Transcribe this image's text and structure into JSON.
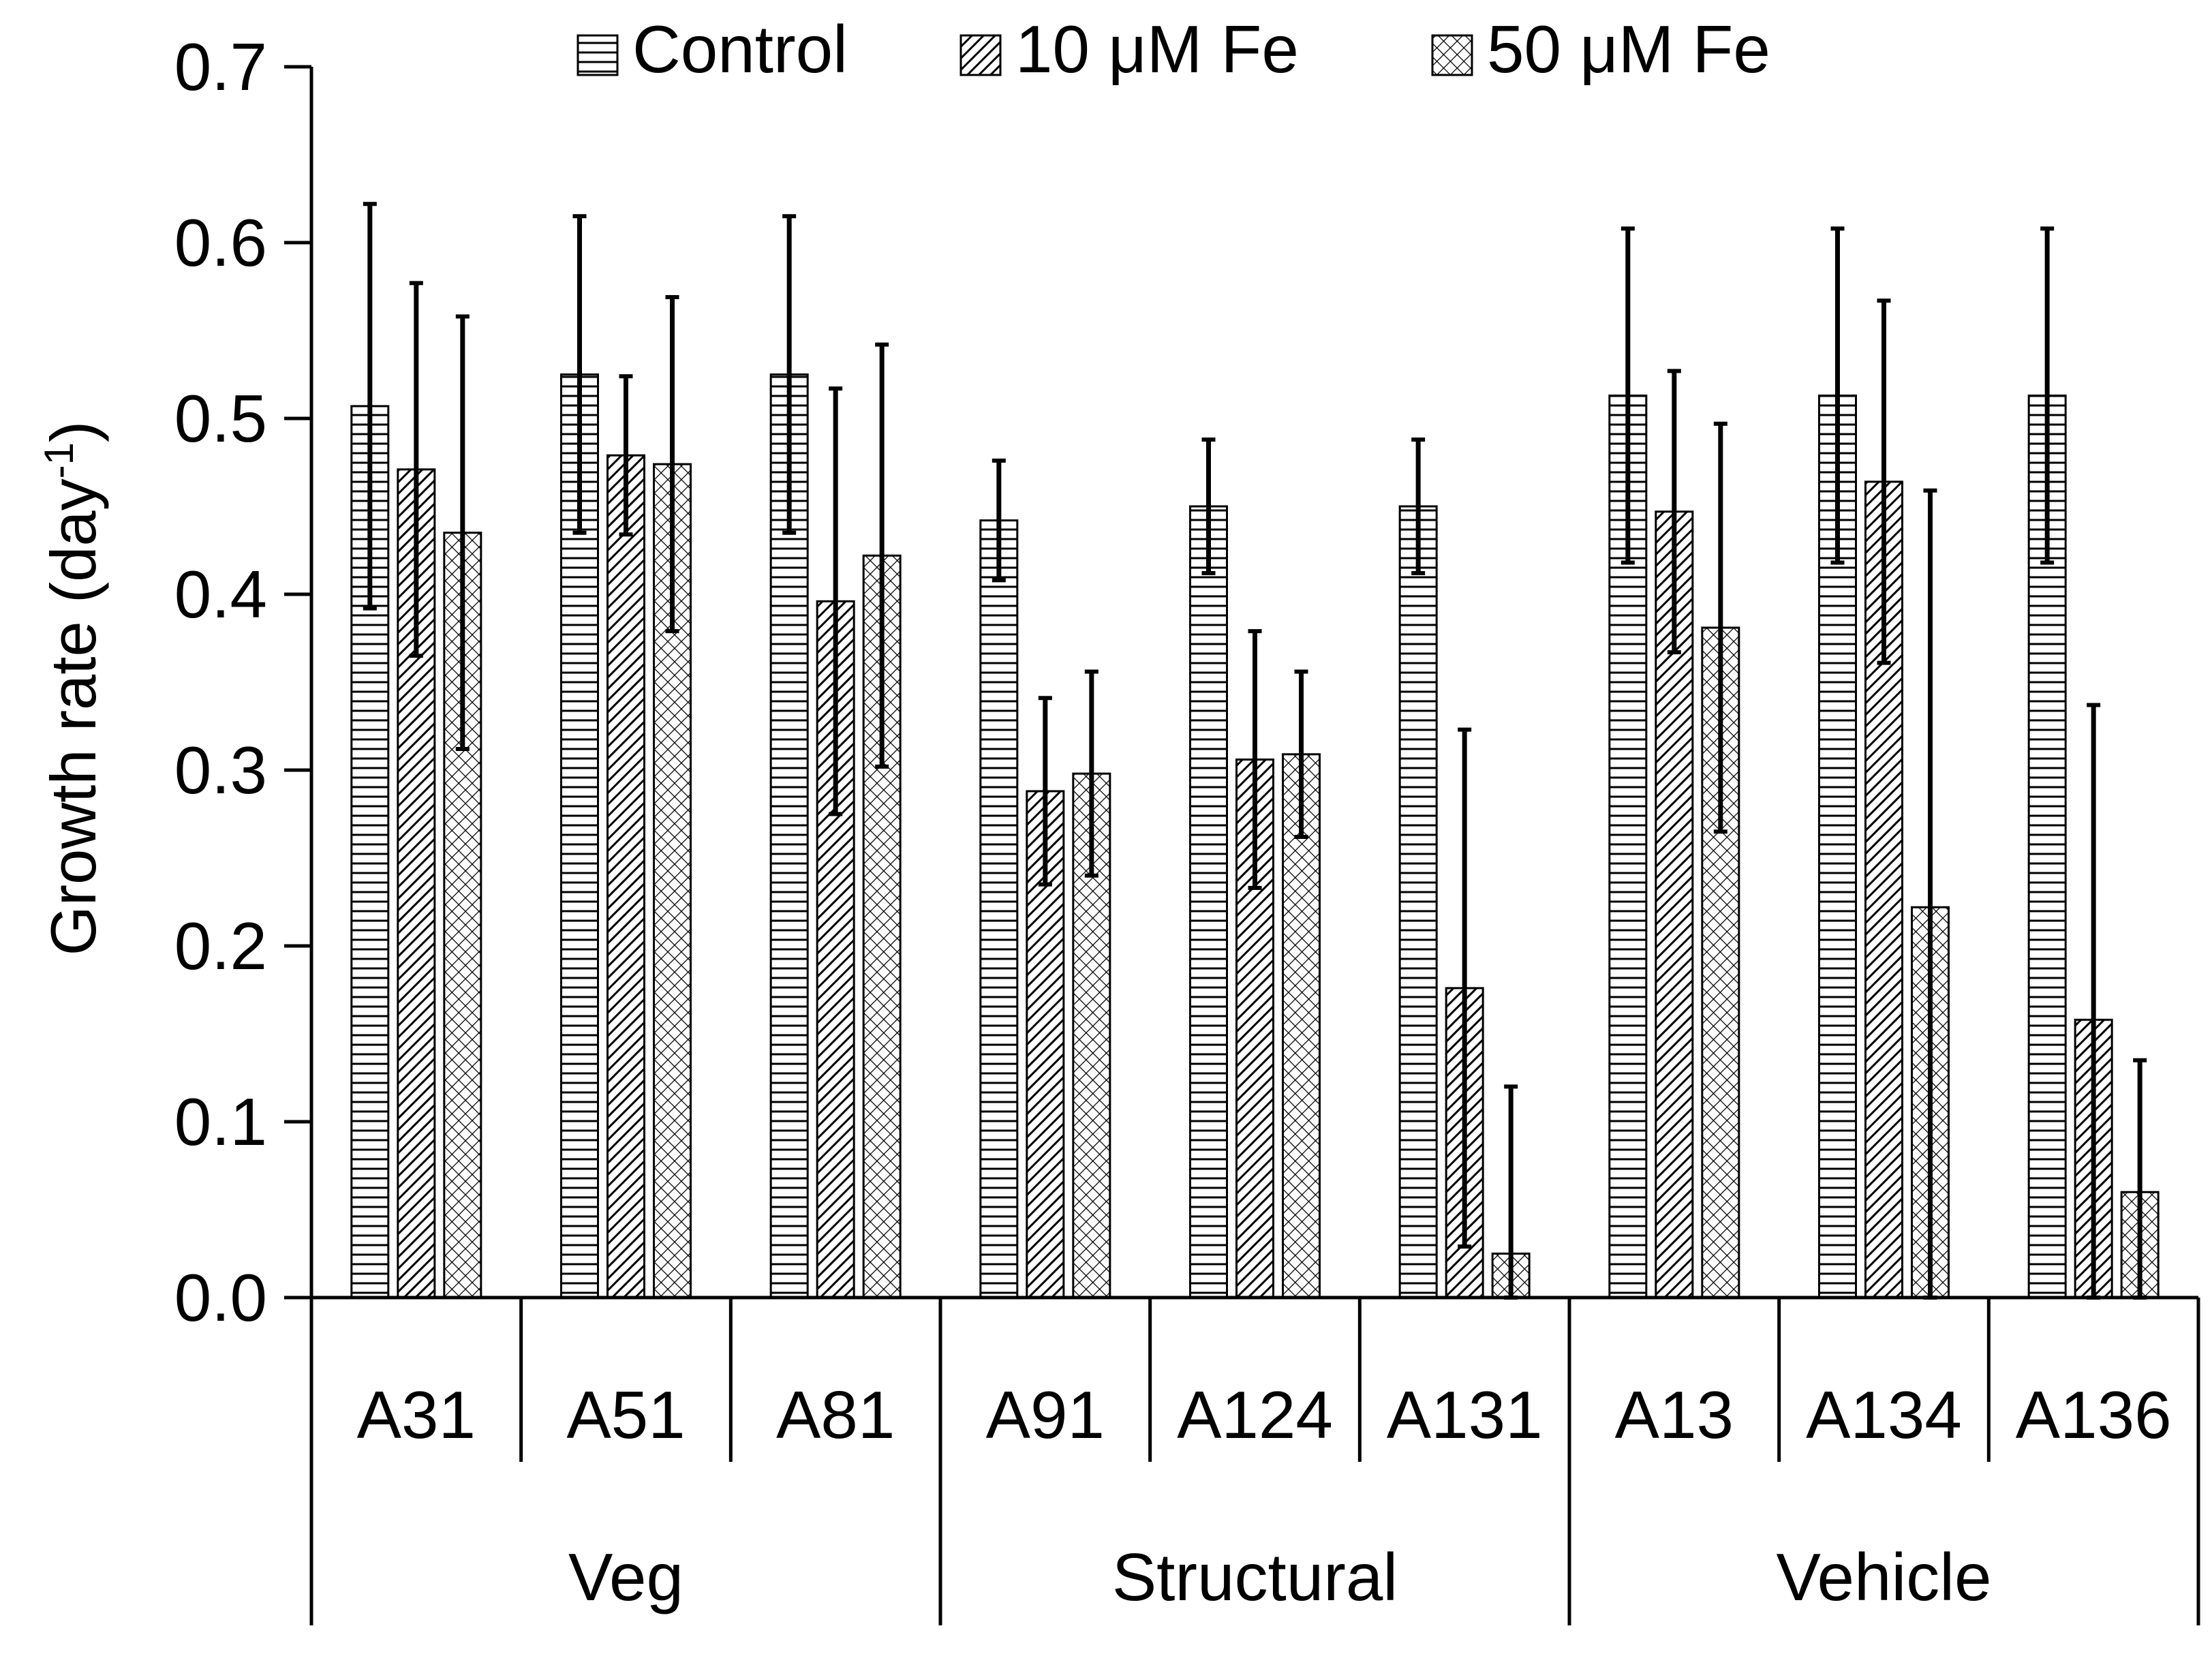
{
  "chart_data": {
    "type": "bar",
    "title": "",
    "ylabel": "Growth rate (day",
    "ylabel_sup": "-1",
    "ylabel_close": ")",
    "ylim": [
      0,
      0.7
    ],
    "yticks": [
      "0.0",
      "0.1",
      "0.2",
      "0.3",
      "0.4",
      "0.5",
      "0.6",
      "0.7"
    ],
    "categories": [
      "A31",
      "A51",
      "A81",
      "A91",
      "A124",
      "A131",
      "A13",
      "A134",
      "A136"
    ],
    "groups": [
      {
        "label": "Veg",
        "count": 3
      },
      {
        "label": "Structural",
        "count": 3
      },
      {
        "label": "Vehicle",
        "count": 3
      }
    ],
    "legend_position": "top-center",
    "series": [
      {
        "name": "Control",
        "pattern": "horizontal-lines",
        "values": [
          0.507,
          0.525,
          0.525,
          0.442,
          0.45,
          0.45,
          0.513,
          0.513,
          0.513
        ],
        "errors": [
          0.115,
          0.09,
          0.09,
          0.034,
          0.038,
          0.038,
          0.095,
          0.095,
          0.095
        ]
      },
      {
        "name": "10 μM Fe",
        "pattern": "diagonal-lines",
        "values": [
          0.471,
          0.479,
          0.396,
          0.288,
          0.306,
          0.176,
          0.447,
          0.464,
          0.158
        ],
        "errors": [
          0.106,
          0.045,
          0.121,
          0.053,
          0.073,
          0.147,
          0.08,
          0.103,
          0.179
        ]
      },
      {
        "name": "50 μM Fe",
        "pattern": "crosshatch",
        "values": [
          0.435,
          0.474,
          0.422,
          0.298,
          0.309,
          0.025,
          0.381,
          0.222,
          0.06
        ],
        "errors": [
          0.123,
          0.095,
          0.12,
          0.058,
          0.047,
          0.095,
          0.116,
          0.237,
          0.075
        ]
      }
    ]
  }
}
